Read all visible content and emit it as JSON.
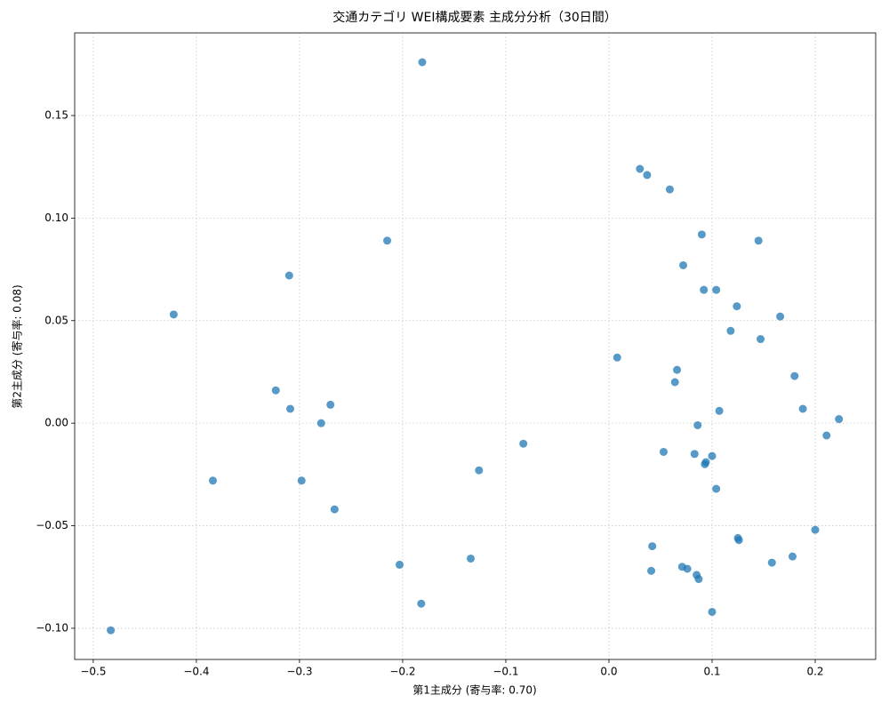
{
  "chart_data": {
    "type": "scatter",
    "title": "交通カテゴリ WEI構成要素 主成分分析（30日間）",
    "x_label": "第1主成分 (寄与率: 0.70)",
    "y_label": "第2主成分 (寄与率: 0.08)",
    "color": "#1f77b4",
    "grid": true,
    "xlim": [
      -0.518,
      0.2586
    ],
    "ylim": [
      -0.1152,
      0.1903
    ],
    "xticks": [
      {
        "value": -0.5,
        "label": "−0.5"
      },
      {
        "value": -0.4,
        "label": "−0.4"
      },
      {
        "value": -0.3,
        "label": "−0.3"
      },
      {
        "value": -0.2,
        "label": "−0.2"
      },
      {
        "value": -0.1,
        "label": "−0.1"
      },
      {
        "value": 0,
        "label": "0.0"
      },
      {
        "value": 0.1,
        "label": "0.1"
      },
      {
        "value": 0.2,
        "label": "0.2"
      }
    ],
    "yticks": [
      {
        "value": -0.1,
        "label": "−0.10"
      },
      {
        "value": -0.05,
        "label": "−0.05"
      },
      {
        "value": 0,
        "label": "0.00"
      },
      {
        "value": 0.05,
        "label": "0.05"
      },
      {
        "value": 0.1,
        "label": "0.10"
      },
      0.15
    ],
    "x": [
      -0.181,
      0.03,
      0.037,
      0.059,
      -0.215,
      0.09,
      0.145,
      0.072,
      -0.31,
      0.092,
      0.104,
      0.124,
      -0.422,
      0.166,
      0.118,
      0.147,
      0.008,
      0.066,
      0.18,
      0.064,
      -0.323,
      -0.27,
      -0.309,
      0.188,
      0.107,
      0.223,
      -0.279,
      0.086,
      0.211,
      -0.083,
      0.053,
      0.083,
      0.1,
      0.094,
      0.093,
      -0.126,
      -0.384,
      -0.298,
      0.104,
      -0.266,
      0.2,
      0.126,
      0.125,
      0.042,
      -0.134,
      0.178,
      0.158,
      -0.203,
      0.071,
      0.076,
      0.041,
      0.085,
      0.087,
      -0.182,
      0.1,
      -0.483
    ],
    "values": [
      0.176,
      0.124,
      0.121,
      0.114,
      0.089,
      0.092,
      0.089,
      0.077,
      0.072,
      0.065,
      0.065,
      0.057,
      0.053,
      0.052,
      0.045,
      0.041,
      0.032,
      0.026,
      0.023,
      0.02,
      0.016,
      0.009,
      0.007,
      0.007,
      0.006,
      0.002,
      0.0,
      -0.001,
      -0.006,
      -0.01,
      -0.014,
      -0.015,
      -0.016,
      -0.019,
      -0.02,
      -0.023,
      -0.028,
      -0.028,
      -0.032,
      -0.042,
      -0.052,
      -0.057,
      -0.056,
      -0.06,
      -0.066,
      -0.065,
      -0.068,
      -0.069,
      -0.07,
      -0.071,
      -0.072,
      -0.074,
      -0.076,
      -0.088,
      -0.092,
      -0.101
    ]
  }
}
